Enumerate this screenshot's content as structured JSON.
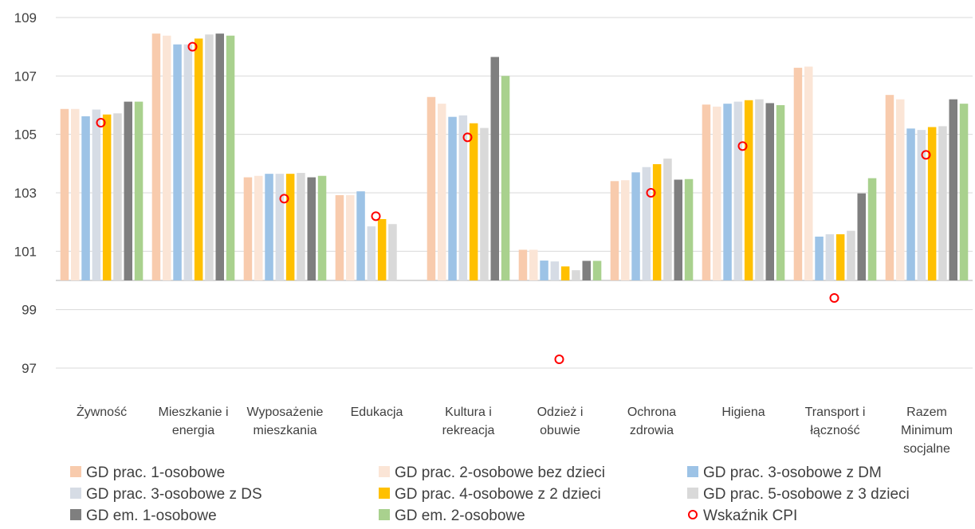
{
  "chart_data": {
    "type": "bar",
    "title": "",
    "xlabel": "",
    "ylabel": "",
    "ylim": [
      97,
      109
    ],
    "baseline": 100,
    "yticks": [
      "97",
      "99",
      "101",
      "103",
      "105",
      "107",
      "109"
    ],
    "grid": true,
    "legend_position": "bottom",
    "categories": [
      [
        "Żywność"
      ],
      [
        "Mieszkanie i",
        "energia"
      ],
      [
        "Wyposażenie",
        "mieszkania"
      ],
      [
        "Edukacja"
      ],
      [
        "Kultura i",
        "rekreacja"
      ],
      [
        "Odzież i",
        "obuwie"
      ],
      [
        "Ochrona",
        "zdrowia"
      ],
      [
        "Higiena"
      ],
      [
        "Transport i",
        "łączność"
      ],
      [
        "Razem",
        "Minimum",
        "socjalne"
      ]
    ],
    "series": [
      {
        "name": "GD prac. 1-osobowe",
        "color": "#F8CBAD",
        "values": [
          105.87,
          108.45,
          103.53,
          102.92,
          106.28,
          101.05,
          103.4,
          106.02,
          107.28,
          106.35
        ]
      },
      {
        "name": "GD prac. 2-osobowe bez dzieci",
        "color": "#FBE5D6",
        "values": [
          105.87,
          108.38,
          103.58,
          102.92,
          106.05,
          101.05,
          103.43,
          105.95,
          107.32,
          106.2
        ]
      },
      {
        "name": "GD prac. 3-osobowe z DM",
        "color": "#9DC3E6",
        "values": [
          105.62,
          108.08,
          103.65,
          103.05,
          105.6,
          100.68,
          103.7,
          106.05,
          101.5,
          105.2
        ]
      },
      {
        "name": "GD prac. 3-osobowe z DS",
        "color": "#D6DCE5",
        "values": [
          105.85,
          108.08,
          103.65,
          101.85,
          105.65,
          100.65,
          103.88,
          106.12,
          101.58,
          105.15
        ]
      },
      {
        "name": "GD prac. 4-osobowe z 2 dzieci",
        "color": "#FFC000",
        "values": [
          105.68,
          108.28,
          103.65,
          102.1,
          105.38,
          100.48,
          103.98,
          106.17,
          101.58,
          105.25
        ]
      },
      {
        "name": "GD prac. 5-osobowe z 3 dzieci",
        "color": "#D9D9D9",
        "values": [
          105.72,
          108.42,
          103.68,
          101.93,
          105.22,
          100.35,
          104.17,
          106.2,
          101.7,
          105.28
        ]
      },
      {
        "name": "GD em. 1-osobowe",
        "color": "#7F7F7F",
        "values": [
          106.12,
          108.45,
          103.53,
          null,
          107.65,
          100.67,
          103.45,
          106.07,
          102.98,
          106.2
        ]
      },
      {
        "name": "GD em. 2-osobowe",
        "color": "#A9D18E",
        "values": [
          106.12,
          108.38,
          103.58,
          null,
          107.0,
          100.67,
          103.47,
          106.0,
          103.5,
          106.05
        ]
      }
    ],
    "cpi": {
      "name": "Wskaźnik CPI",
      "color": "#FF0000",
      "values": [
        105.4,
        108.0,
        102.8,
        102.2,
        104.9,
        97.3,
        103.0,
        104.6,
        99.4,
        104.3
      ]
    }
  }
}
